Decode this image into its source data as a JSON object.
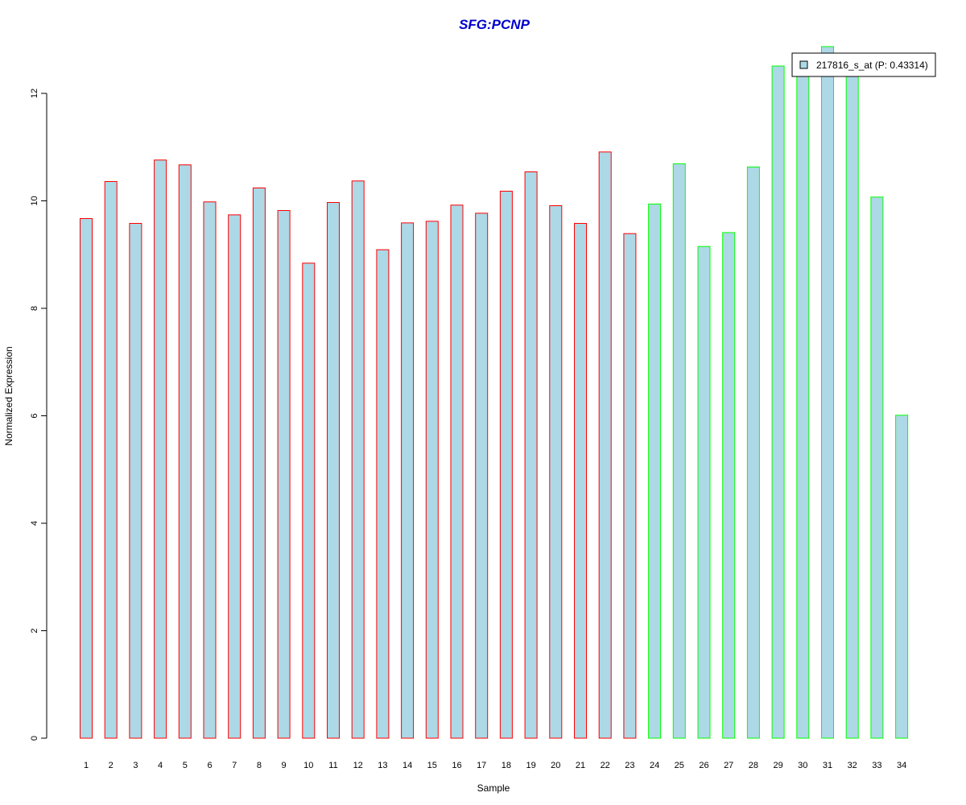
{
  "chart_data": {
    "type": "bar",
    "title": "SFG:PCNP",
    "xlabel": "Sample",
    "ylabel": "Normalized Expression",
    "ylim": [
      0,
      12
    ],
    "yticks": [
      0,
      2,
      4,
      6,
      8,
      10,
      12
    ],
    "categories": [
      "1",
      "2",
      "3",
      "4",
      "5",
      "6",
      "7",
      "8",
      "9",
      "10",
      "11",
      "12",
      "13",
      "14",
      "15",
      "16",
      "17",
      "18",
      "19",
      "20",
      "21",
      "22",
      "23",
      "24",
      "25",
      "26",
      "27",
      "28",
      "29",
      "30",
      "31",
      "32",
      "33",
      "34"
    ],
    "series": [
      {
        "name": "217816_s_at (P: 0.43314)",
        "values": [
          9.67,
          10.36,
          9.58,
          10.76,
          10.67,
          9.98,
          9.74,
          10.24,
          9.82,
          8.84,
          9.97,
          10.37,
          9.09,
          9.59,
          9.62,
          9.92,
          9.77,
          10.18,
          10.54,
          9.91,
          9.58,
          10.91,
          9.39,
          9.94,
          10.69,
          9.15,
          9.41,
          10.63,
          12.51,
          12.4,
          12.87,
          12.4,
          10.07,
          6.01
        ]
      }
    ],
    "group_sizes": [
      23,
      11
    ],
    "colors": {
      "fill": "#add8e6",
      "group1_border": "#ff0000",
      "group2_border": "#00ff00",
      "title": "#0000cc"
    },
    "legend": {
      "placement": "top-right",
      "label": "217816_s_at (P: 0.43314)"
    }
  }
}
